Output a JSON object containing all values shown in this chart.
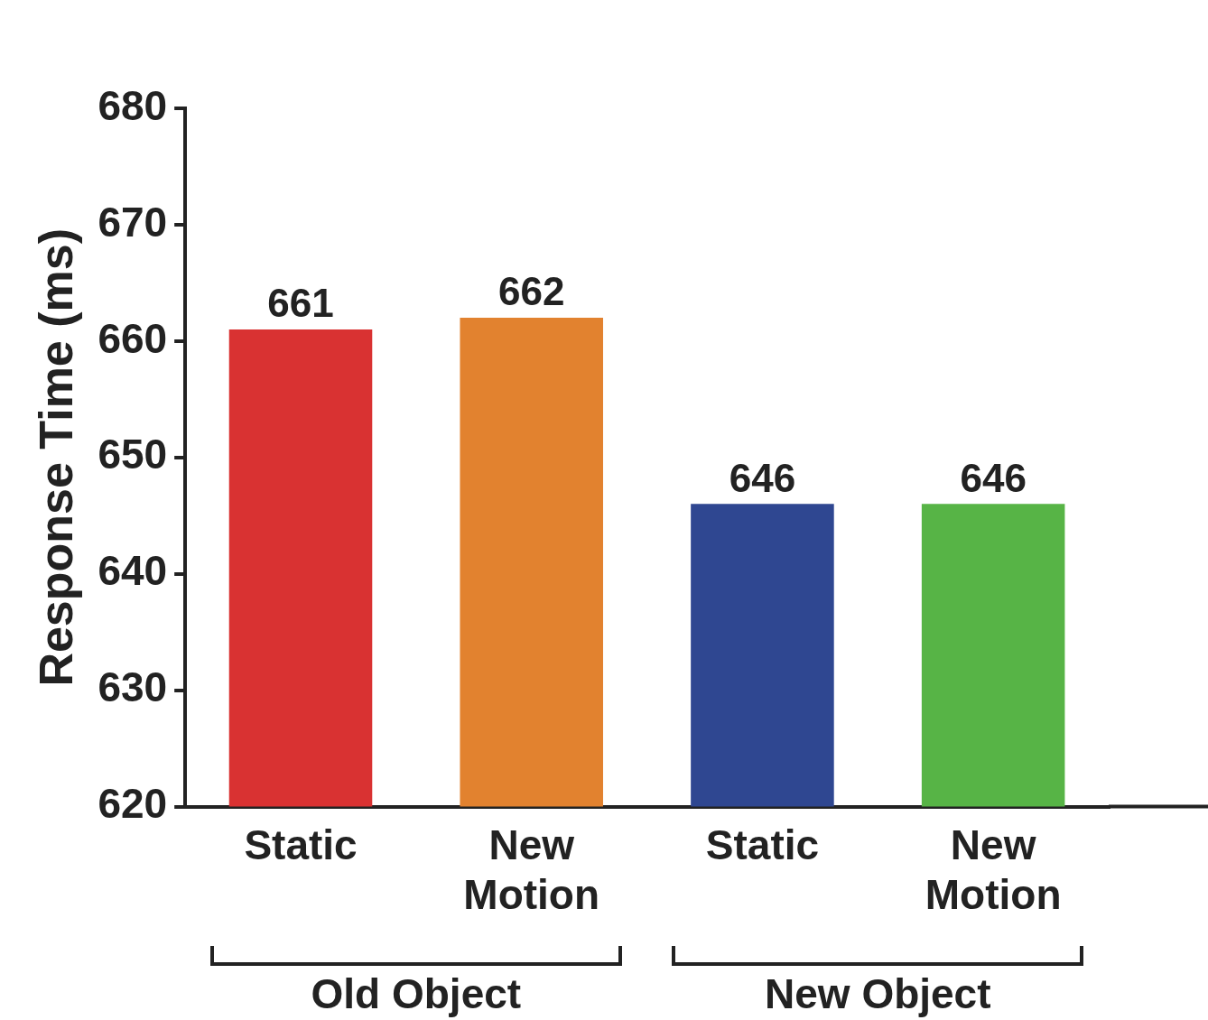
{
  "chart_data": {
    "type": "bar",
    "ylabel": "Response Time (ms)",
    "categories": [
      "Static",
      "New Motion",
      "Static",
      "New Motion"
    ],
    "values": [
      661,
      662,
      646,
      646
    ],
    "colors": [
      "#d93232",
      "#e2822f",
      "#2f4791",
      "#57b446"
    ],
    "ylim": [
      620,
      680
    ],
    "yticks": [
      620,
      630,
      640,
      650,
      660,
      670,
      680
    ],
    "data_labels": true,
    "grid": false,
    "legend": false,
    "annotations": [
      "Old Object",
      "New Object"
    ]
  }
}
